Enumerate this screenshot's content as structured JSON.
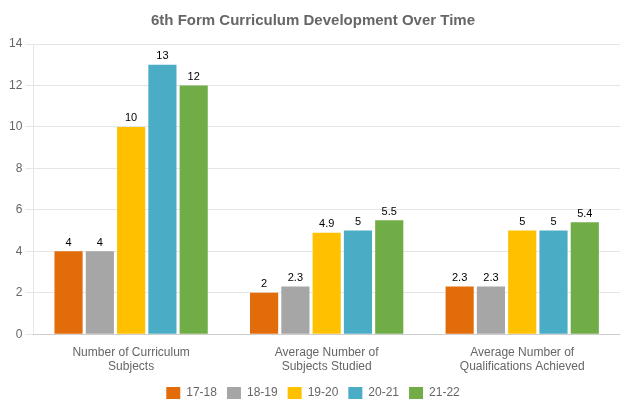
{
  "chart_data": {
    "type": "bar",
    "title": "6th Form Curriculum Development Over Time",
    "categories": [
      "Number of Curriculum\nSubjects",
      "Average Number of\nSubjects Studied",
      "Average Number of\nQualifications Achieved"
    ],
    "series": [
      {
        "name": "17-18",
        "color": "#E36C0A",
        "values": [
          4,
          2,
          2.3
        ]
      },
      {
        "name": "18-19",
        "color": "#A6A6A6",
        "values": [
          4,
          2.3,
          2.3
        ]
      },
      {
        "name": "19-20",
        "color": "#FFC000",
        "values": [
          10,
          4.9,
          5
        ]
      },
      {
        "name": "20-21",
        "color": "#4BACC6",
        "values": [
          13,
          5,
          5
        ]
      },
      {
        "name": "21-22",
        "color": "#70AD47",
        "values": [
          12,
          5.5,
          5.4
        ]
      }
    ],
    "ylim": [
      0,
      14
    ],
    "yticks": [
      0,
      2,
      4,
      6,
      8,
      10,
      12,
      14
    ],
    "grid": true,
    "legend": "bottom",
    "data_labels": true
  }
}
